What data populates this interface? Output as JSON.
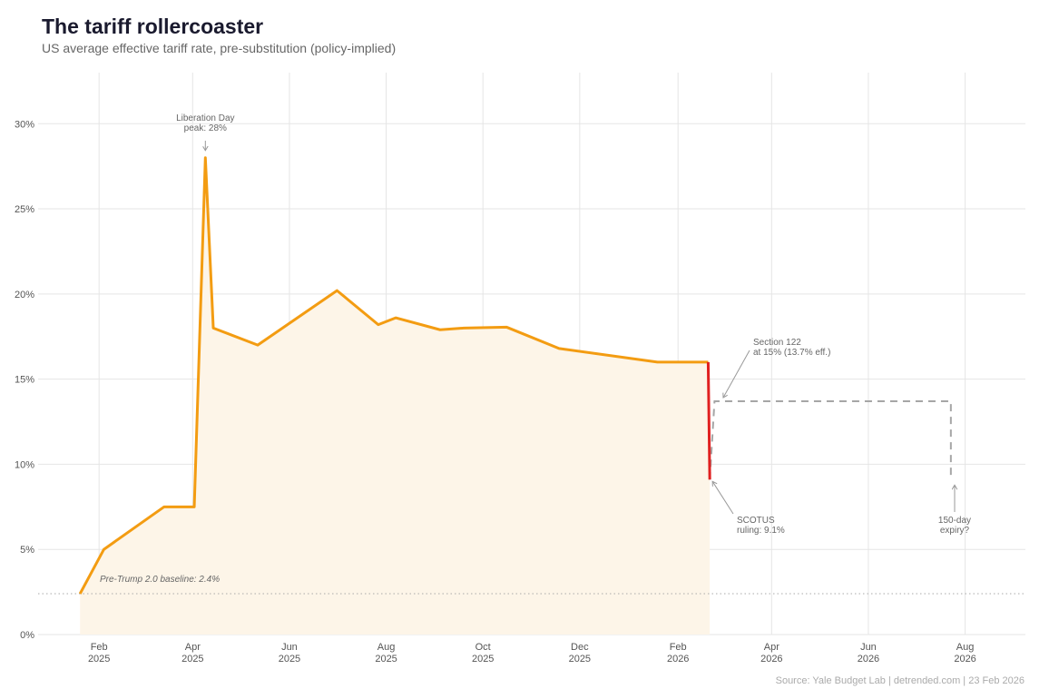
{
  "title": "The tariff rollercoaster",
  "subtitle": "US average effective tariff rate, pre-substitution (policy-implied)",
  "caption": "Source: Yale Budget Lab | detrended.com | 23 Feb 2026",
  "chart_data": {
    "type": "line",
    "title": "The tariff rollercoaster",
    "xlabel": "",
    "ylabel": "",
    "xlim": [
      "2025-01-05",
      "2026-09-08"
    ],
    "ylim": [
      0,
      33
    ],
    "grid": true,
    "colors": {
      "main": "#f39c12",
      "drop": "#e02020",
      "projection": "#a6a6a6",
      "fill": "#fdf5e8",
      "baseline": "#aaaaaa"
    },
    "y_ticks": [
      0,
      5,
      10,
      15,
      20,
      25,
      30
    ],
    "y_tick_labels": [
      "0%",
      "5%",
      "10%",
      "15%",
      "20%",
      "25%",
      "30%"
    ],
    "x_ticks": [
      "2025-02-01",
      "2025-04-01",
      "2025-06-01",
      "2025-08-01",
      "2025-10-01",
      "2025-12-01",
      "2026-02-01",
      "2026-04-01",
      "2026-06-01",
      "2026-08-01"
    ],
    "x_tick_labels": [
      [
        "Feb",
        "2025"
      ],
      [
        "Apr",
        "2025"
      ],
      [
        "Jun",
        "2025"
      ],
      [
        "Aug",
        "2025"
      ],
      [
        "Oct",
        "2025"
      ],
      [
        "Dec",
        "2025"
      ],
      [
        "Feb",
        "2026"
      ],
      [
        "Apr",
        "2026"
      ],
      [
        "Jun",
        "2026"
      ],
      [
        "Aug",
        "2026"
      ]
    ],
    "series": [
      {
        "role": "main",
        "points": [
          [
            "2025-01-20",
            2.4
          ],
          [
            "2025-02-04",
            5.0
          ],
          [
            "2025-03-14",
            7.5
          ],
          [
            "2025-04-02",
            7.5
          ],
          [
            "2025-04-09",
            28.0
          ],
          [
            "2025-04-14",
            18.0
          ],
          [
            "2025-05-12",
            17.0
          ],
          [
            "2025-07-01",
            20.2
          ],
          [
            "2025-07-27",
            18.2
          ],
          [
            "2025-08-07",
            18.6
          ],
          [
            "2025-09-04",
            17.9
          ],
          [
            "2025-09-19",
            18.0
          ],
          [
            "2025-10-16",
            18.05
          ],
          [
            "2025-11-18",
            16.8
          ],
          [
            "2026-01-19",
            16.0
          ],
          [
            "2026-02-20",
            16.0
          ]
        ]
      },
      {
        "role": "drop",
        "points": [
          [
            "2026-02-20",
            16.0
          ],
          [
            "2026-02-21",
            9.1
          ]
        ]
      },
      {
        "role": "projection",
        "points": [
          [
            "2026-02-21",
            9.1
          ],
          [
            "2026-02-24",
            13.7
          ],
          [
            "2026-07-23",
            13.7
          ],
          [
            "2026-07-23",
            9.1
          ]
        ]
      }
    ],
    "baseline": {
      "value": 2.4,
      "label": "Pre-Trump 2.0 baseline: 2.4%"
    },
    "annotations": [
      {
        "lines": [
          "Liberation Day",
          "peak: 28%"
        ],
        "date": "2025-04-09",
        "value": 28.0
      },
      {
        "lines": [
          "Section 122",
          "at 15% (13.7% eff.)"
        ],
        "date": "2026-02-24",
        "value": 13.7
      },
      {
        "lines": [
          "SCOTUS",
          "ruling: 9.1%"
        ],
        "date": "2026-02-21",
        "value": 9.1
      },
      {
        "lines": [
          "150-day",
          "expiry?"
        ],
        "date": "2026-07-23",
        "value": 9.1
      }
    ]
  }
}
